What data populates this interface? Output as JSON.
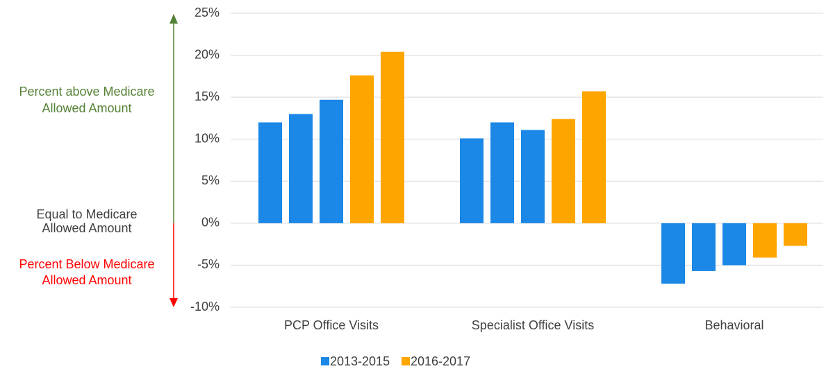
{
  "chart_data": {
    "type": "grouped_bar",
    "categories": [
      "PCP Office Visits",
      "Specialist Office Visits",
      "Behavioral"
    ],
    "series": [
      {
        "name": "2013-2015",
        "color": "#1b87e6",
        "values": [
          [
            12,
            13,
            14.7
          ],
          [
            10.1,
            12,
            11.1
          ],
          [
            -7.2,
            -5.7,
            -5
          ]
        ]
      },
      {
        "name": "2016-2017",
        "color": "#ffa500",
        "values": [
          [
            17.6,
            20.4
          ],
          [
            12.4,
            15.7
          ],
          [
            -4.1,
            -2.7
          ]
        ]
      }
    ],
    "ylim": [
      -10,
      25
    ],
    "yticks": [
      {
        "value": -10,
        "label": "-10%"
      },
      {
        "value": -5,
        "label": "-5%"
      },
      {
        "value": 0,
        "label": "0%"
      },
      {
        "value": 5,
        "label": "5%"
      },
      {
        "value": 10,
        "label": "10%"
      },
      {
        "value": 15,
        "label": "15%"
      },
      {
        "value": 20,
        "label": "20%"
      },
      {
        "value": 25,
        "label": "25%"
      }
    ],
    "grid": true,
    "legend": "bottom",
    "annotations": [
      {
        "lines": [
          "Percent above Medicare",
          "Allowed Amount"
        ],
        "color": "#548235"
      },
      {
        "lines": [
          "Equal to Medicare",
          "Allowed Amount"
        ],
        "color": "#404040"
      },
      {
        "lines": [
          "Percent Below Medicare",
          "Allowed Amount"
        ],
        "color": "#ff0000"
      }
    ]
  }
}
